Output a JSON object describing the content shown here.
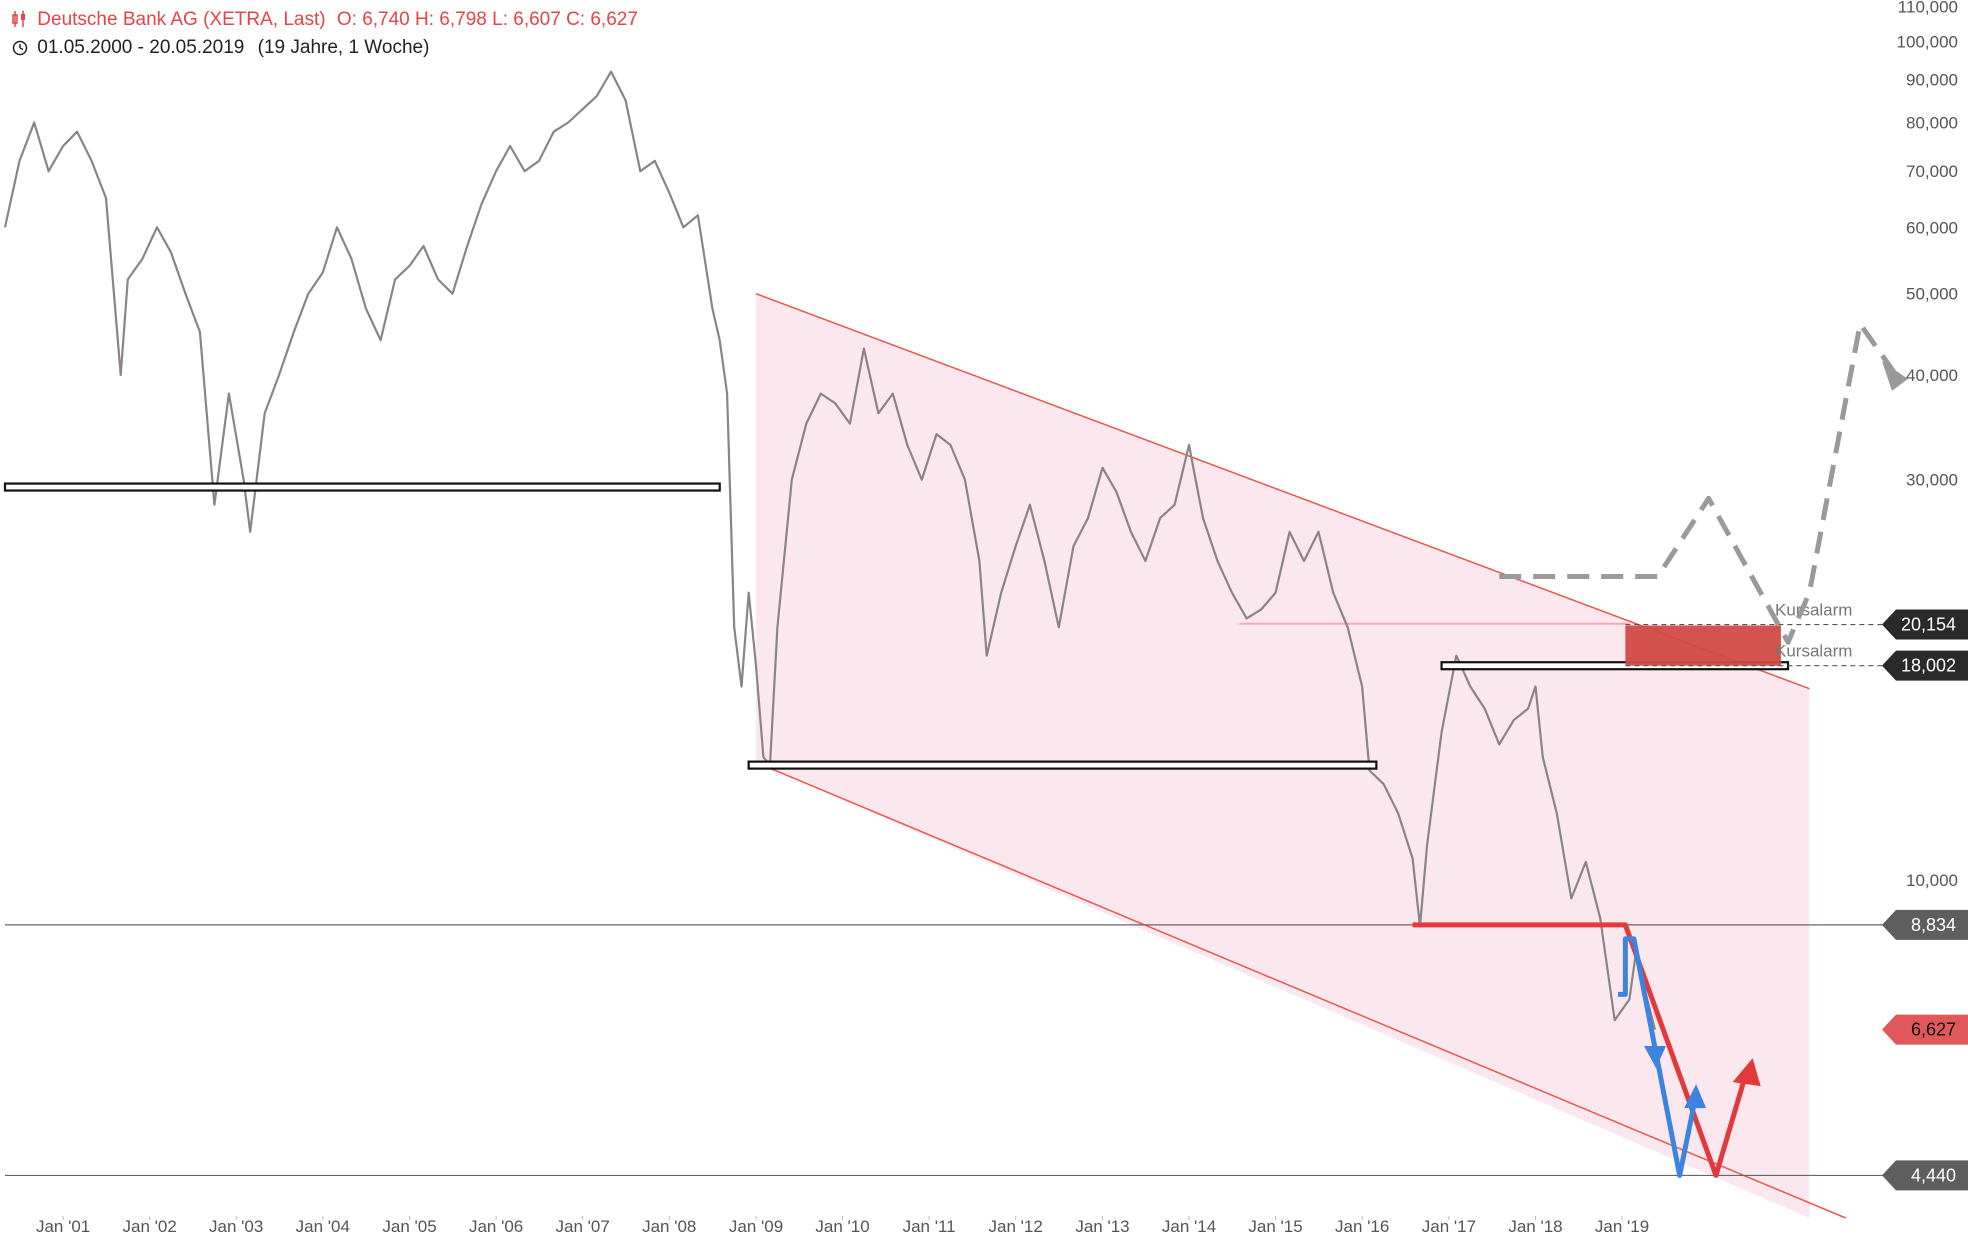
{
  "header": {
    "instrument": "Deutsche Bank AG (XETRA, Last)",
    "ohlc": "O: 6,740  H: 6,798  L: 6,607  C: 6,627",
    "period": "01.05.2000 - 20.05.2019",
    "period_note": "(19 Jahre, 1 Woche)"
  },
  "colors": {
    "price_line": "#8a8584",
    "channel_fill": "#fbe8ee",
    "channel_line": "#e8574f",
    "support_line": "#111111",
    "red_target": "#e23a3a",
    "blue_target": "#3b84e0",
    "scenario": "#9a9a9a",
    "kursalarm_box": "#d24a45",
    "current_price_tag": "#e0585a"
  },
  "chart_data": {
    "type": "line",
    "scale": "log",
    "xlim": [
      "2000-05-01",
      "2019-05-20"
    ],
    "ylim": [
      3.95,
      112
    ],
    "y_ticks": [
      {
        "value": 110,
        "label": "110,000"
      },
      {
        "value": 100,
        "label": "100,000"
      },
      {
        "value": 90,
        "label": "90,000"
      },
      {
        "value": 80,
        "label": "80,000"
      },
      {
        "value": 70,
        "label": "70,000"
      },
      {
        "value": 60,
        "label": "60,000"
      },
      {
        "value": 50,
        "label": "50,000"
      },
      {
        "value": 40,
        "label": "40,000"
      },
      {
        "value": 30,
        "label": "30,000"
      },
      {
        "value": 10,
        "label": "10,000"
      }
    ],
    "x_ticks": [
      {
        "value": "2001-01-01",
        "label": "Jan '01"
      },
      {
        "value": "2002-01-01",
        "label": "Jan '02"
      },
      {
        "value": "2003-01-01",
        "label": "Jan '03"
      },
      {
        "value": "2004-01-01",
        "label": "Jan '04"
      },
      {
        "value": "2005-01-01",
        "label": "Jan '05"
      },
      {
        "value": "2006-01-01",
        "label": "Jan '06"
      },
      {
        "value": "2007-01-01",
        "label": "Jan '07"
      },
      {
        "value": "2008-01-01",
        "label": "Jan '08"
      },
      {
        "value": "2009-01-01",
        "label": "Jan '09"
      },
      {
        "value": "2010-01-01",
        "label": "Jan '10"
      },
      {
        "value": "2011-01-01",
        "label": "Jan '11"
      },
      {
        "value": "2012-01-01",
        "label": "Jan '12"
      },
      {
        "value": "2013-01-01",
        "label": "Jan '13"
      },
      {
        "value": "2014-01-01",
        "label": "Jan '14"
      },
      {
        "value": "2015-01-01",
        "label": "Jan '15"
      },
      {
        "value": "2016-01-01",
        "label": "Jan '16"
      },
      {
        "value": "2017-01-01",
        "label": "Jan '17"
      },
      {
        "value": "2018-01-01",
        "label": "Jan '18"
      },
      {
        "value": "2019-01-01",
        "label": "Jan '19"
      }
    ],
    "series": [
      {
        "values": [
          [
            "2000-05-01",
            60
          ],
          [
            "2000-07-01",
            72
          ],
          [
            "2000-09-01",
            80
          ],
          [
            "2000-11-01",
            70
          ],
          [
            "2001-01-01",
            75
          ],
          [
            "2001-03-01",
            78
          ],
          [
            "2001-05-01",
            72
          ],
          [
            "2001-07-01",
            65
          ],
          [
            "2001-09-01",
            40
          ],
          [
            "2001-10-01",
            52
          ],
          [
            "2001-12-01",
            55
          ],
          [
            "2002-02-01",
            60
          ],
          [
            "2002-04-01",
            56
          ],
          [
            "2002-06-01",
            50
          ],
          [
            "2002-08-01",
            45
          ],
          [
            "2002-10-01",
            28
          ],
          [
            "2002-12-01",
            38
          ],
          [
            "2003-02-01",
            30
          ],
          [
            "2003-03-01",
            26
          ],
          [
            "2003-05-01",
            36
          ],
          [
            "2003-07-01",
            40
          ],
          [
            "2003-09-01",
            45
          ],
          [
            "2003-11-01",
            50
          ],
          [
            "2004-01-01",
            53
          ],
          [
            "2004-03-01",
            60
          ],
          [
            "2004-05-01",
            55
          ],
          [
            "2004-07-01",
            48
          ],
          [
            "2004-09-01",
            44
          ],
          [
            "2004-11-01",
            52
          ],
          [
            "2005-01-01",
            54
          ],
          [
            "2005-03-01",
            57
          ],
          [
            "2005-05-01",
            52
          ],
          [
            "2005-07-01",
            50
          ],
          [
            "2005-09-01",
            57
          ],
          [
            "2005-11-01",
            64
          ],
          [
            "2006-01-01",
            70
          ],
          [
            "2006-03-01",
            75
          ],
          [
            "2006-05-01",
            70
          ],
          [
            "2006-07-01",
            72
          ],
          [
            "2006-09-01",
            78
          ],
          [
            "2006-11-01",
            80
          ],
          [
            "2007-01-01",
            83
          ],
          [
            "2007-03-01",
            86
          ],
          [
            "2007-05-01",
            92
          ],
          [
            "2007-07-01",
            85
          ],
          [
            "2007-09-01",
            70
          ],
          [
            "2007-11-01",
            72
          ],
          [
            "2008-01-01",
            66
          ],
          [
            "2008-03-01",
            60
          ],
          [
            "2008-05-01",
            62
          ],
          [
            "2008-07-01",
            48
          ],
          [
            "2008-08-01",
            44
          ],
          [
            "2008-09-01",
            38
          ],
          [
            "2008-10-01",
            20
          ],
          [
            "2008-11-01",
            17
          ],
          [
            "2008-12-01",
            22
          ],
          [
            "2009-01-01",
            18
          ],
          [
            "2009-02-01",
            14
          ],
          [
            "2009-03-01",
            13.7
          ],
          [
            "2009-04-01",
            20
          ],
          [
            "2009-06-01",
            30
          ],
          [
            "2009-08-01",
            35
          ],
          [
            "2009-10-01",
            38
          ],
          [
            "2009-12-01",
            37
          ],
          [
            "2010-02-01",
            35
          ],
          [
            "2010-04-01",
            43
          ],
          [
            "2010-06-01",
            36
          ],
          [
            "2010-08-01",
            38
          ],
          [
            "2010-10-01",
            33
          ],
          [
            "2010-12-01",
            30
          ],
          [
            "2011-02-01",
            34
          ],
          [
            "2011-04-01",
            33
          ],
          [
            "2011-06-01",
            30
          ],
          [
            "2011-08-01",
            24
          ],
          [
            "2011-09-01",
            18.5
          ],
          [
            "2011-11-01",
            22
          ],
          [
            "2012-01-01",
            25
          ],
          [
            "2012-03-01",
            28
          ],
          [
            "2012-05-01",
            24
          ],
          [
            "2012-07-01",
            20
          ],
          [
            "2012-09-01",
            25
          ],
          [
            "2012-11-01",
            27
          ],
          [
            "2013-01-01",
            31
          ],
          [
            "2013-03-01",
            29
          ],
          [
            "2013-05-01",
            26
          ],
          [
            "2013-07-01",
            24
          ],
          [
            "2013-09-01",
            27
          ],
          [
            "2013-11-01",
            28
          ],
          [
            "2014-01-01",
            33
          ],
          [
            "2014-03-01",
            27
          ],
          [
            "2014-05-01",
            24
          ],
          [
            "2014-07-01",
            22
          ],
          [
            "2014-09-01",
            20.5
          ],
          [
            "2014-11-01",
            21
          ],
          [
            "2015-01-01",
            22
          ],
          [
            "2015-03-01",
            26
          ],
          [
            "2015-05-01",
            24
          ],
          [
            "2015-07-01",
            26
          ],
          [
            "2015-09-01",
            22
          ],
          [
            "2015-11-01",
            20
          ],
          [
            "2016-01-01",
            17
          ],
          [
            "2016-02-01",
            13.5
          ],
          [
            "2016-04-01",
            13
          ],
          [
            "2016-06-01",
            12
          ],
          [
            "2016-08-01",
            10.6
          ],
          [
            "2016-09-01",
            8.8
          ],
          [
            "2016-10-01",
            11
          ],
          [
            "2016-12-01",
            15
          ],
          [
            "2017-02-01",
            18.5
          ],
          [
            "2017-04-01",
            17
          ],
          [
            "2017-06-01",
            16
          ],
          [
            "2017-08-01",
            14.5
          ],
          [
            "2017-10-01",
            15.5
          ],
          [
            "2017-12-01",
            16
          ],
          [
            "2018-01-01",
            17
          ],
          [
            "2018-02-01",
            14
          ],
          [
            "2018-04-01",
            12
          ],
          [
            "2018-06-01",
            9.5
          ],
          [
            "2018-08-01",
            10.5
          ],
          [
            "2018-10-01",
            9
          ],
          [
            "2018-12-01",
            6.8
          ],
          [
            "2019-02-01",
            7.2
          ],
          [
            "2019-03-01",
            8.2
          ],
          [
            "2019-04-01",
            7.5
          ],
          [
            "2019-05-20",
            6.627
          ]
        ]
      }
    ],
    "channel": {
      "upper": [
        [
          "2009-01-01",
          50
        ],
        [
          "2021-03-01",
          16.9
        ]
      ],
      "lower": [
        [
          "2009-01-01",
          13.8
        ],
        [
          "2021-08-01",
          3.95
        ]
      ],
      "fill_end": "2021-03-01"
    },
    "support_lines": [
      {
        "from": "2000-05-01",
        "to": "2008-08-01",
        "value": 29.4
      },
      {
        "from": "2008-12-01",
        "to": "2016-03-01",
        "value": 13.7
      },
      {
        "from": "2016-12-01",
        "to": "2020-12-01",
        "value": 18.0
      }
    ],
    "pink_line": {
      "from": "2014-08-01",
      "to": "2019-02-01",
      "value": 20.2
    },
    "horizontal_levels": [
      {
        "value": 8.834,
        "label": "8,834",
        "tag": "dark"
      },
      {
        "value": 4.44,
        "label": "4,440",
        "tag": "dark"
      }
    ],
    "current_price": {
      "value": 6.627,
      "label": "6,627"
    },
    "price_alerts": [
      {
        "value": 20.154,
        "label": "20,154",
        "text": "Kursalarm",
        "from": "2019-01-15"
      },
      {
        "value": 18.002,
        "label": "18,002",
        "text": "Kursalarm",
        "from": "2019-01-15"
      }
    ],
    "alert_box": {
      "from": "2019-01-15",
      "to": "2020-11-01",
      "low": 18.0,
      "high": 20.1
    },
    "red_path": [
      [
        "2016-08-01",
        8.834
      ],
      [
        "2019-01-15",
        8.834
      ],
      [
        "2020-02-01",
        4.44
      ],
      [
        "2020-06-01",
        5.8
      ]
    ],
    "blue_path": [
      [
        "2018-12-15",
        7.3
      ],
      [
        "2019-01-15",
        7.3
      ],
      [
        "2019-01-15",
        8.5
      ],
      [
        "2019-02-20",
        8.5
      ],
      [
        "2019-05-20",
        6.3
      ],
      [
        "2019-09-01",
        4.44
      ],
      [
        "2019-11-01",
        5.4
      ]
    ],
    "gray_scenario": [
      [
        "2017-08-01",
        23.0
      ],
      [
        "2019-06-01",
        23.0
      ],
      [
        "2020-01-01",
        28.5
      ],
      [
        "2020-12-01",
        19.2
      ],
      [
        "2021-03-01",
        22.0
      ],
      [
        "2021-10-01",
        46.0
      ],
      [
        "2022-03-01",
        40.0
      ]
    ]
  }
}
